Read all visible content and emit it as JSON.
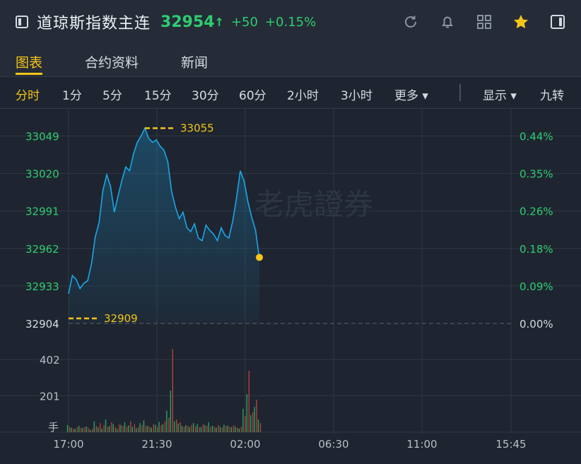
{
  "header": {
    "name": "道琼斯指数主连",
    "price": "32954",
    "arrow": "↑",
    "change": "+50",
    "change_pct": "+0.15%"
  },
  "tabs": [
    "图表",
    "合约资料",
    "新闻"
  ],
  "periods": [
    "分时",
    "1分",
    "5分",
    "15分",
    "30分",
    "60分",
    "2小时",
    "3小时",
    "更多 ▾",
    "显示 ▾",
    "九转"
  ],
  "chart_data": {
    "type": "line",
    "x_ticks": [
      "17:00",
      "21:30",
      "02:00",
      "06:30",
      "11:00",
      "15:45"
    ],
    "y_ticks": [
      32904,
      32933,
      32962,
      32991,
      33020,
      33049
    ],
    "pct_ticks": [
      "0.00%",
      "0.09%",
      "0.18%",
      "0.26%",
      "0.35%",
      "0.44%"
    ],
    "ylim": [
      32904,
      33058
    ],
    "high_label": "33055",
    "low_label": "32909",
    "last_value": 32954,
    "series": [
      {
        "values": [
          32927,
          32941,
          32938,
          32931,
          32935,
          32937,
          32950,
          32971,
          32982,
          33007,
          33019,
          33010,
          32990,
          33003,
          33015,
          33025,
          33022,
          33035,
          33044,
          33049,
          33055,
          33047,
          33044,
          33046,
          33041,
          33038,
          33029,
          33006,
          32994,
          32985,
          32990,
          32978,
          32975,
          32981,
          32970,
          32968,
          32980,
          32976,
          32973,
          32968,
          32978,
          32972,
          32970,
          32983,
          33001,
          33022,
          33014,
          32998,
          32986,
          32976,
          32954
        ]
      }
    ],
    "volume": {
      "ylabel": "手",
      "y_ticks": [
        201,
        402
      ],
      "ylim": [
        0,
        500
      ],
      "buy": [
        40,
        25,
        18,
        35,
        22,
        30,
        12,
        60,
        28,
        20,
        70,
        35,
        45,
        18,
        40,
        55,
        38,
        30,
        22,
        50,
        65,
        35,
        25,
        40,
        58,
        45,
        120,
        230,
        60,
        48,
        35,
        40,
        28,
        50,
        45,
        30,
        40,
        55,
        35,
        25,
        30,
        42,
        36,
        28,
        30,
        20,
        130,
        210,
        95,
        140,
        70
      ],
      "sell": [
        30,
        20,
        28,
        25,
        30,
        22,
        18,
        35,
        50,
        40,
        30,
        55,
        28,
        42,
        35,
        30,
        60,
        45,
        28,
        40,
        35,
        30,
        45,
        30,
        40,
        60,
        80,
        460,
        70,
        55,
        30,
        35,
        40,
        32,
        28,
        45,
        35,
        30,
        28,
        40,
        26,
        35,
        30,
        38,
        25,
        30,
        90,
        340,
        110,
        180,
        50
      ]
    }
  },
  "colors": {
    "up": "#2ecc71",
    "accent": "#f5c518",
    "line": "#1aa7e8"
  },
  "watermark": "老虎證券"
}
